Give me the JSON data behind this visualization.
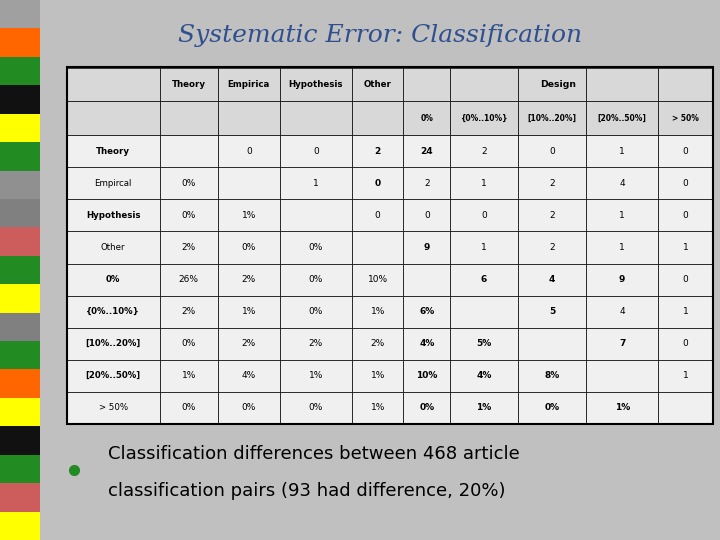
{
  "title": "Systematic Error: Classification",
  "title_color": "#2F4F8F",
  "title_fontsize": 18,
  "bullet_text_line1": "Classification differences between 468 article",
  "bullet_text_line2": "classification pairs (93 had difference, 20%)",
  "bullet_fontsize": 13,
  "col_headers_row1": [
    "",
    "Theory",
    "Empirica",
    "Hypothesis",
    "Other",
    "",
    "Design",
    "",
    "",
    ""
  ],
  "col_headers_row2": [
    "",
    "",
    "",
    "",
    "",
    "0%",
    "{0%..10%}",
    "[10%..20%]",
    "[20%..50%]",
    "> 50%"
  ],
  "row_labels": [
    "Theory",
    "Empircal",
    "Hypothesis",
    "Other",
    "0%",
    "{0%..10%}",
    "[10%..20%]",
    "[20%..50%]",
    "> 50%"
  ],
  "row_labels_bold": [
    true,
    false,
    true,
    false,
    true,
    true,
    true,
    true,
    false
  ],
  "table_data": [
    [
      "",
      "0",
      "0",
      "2",
      "24",
      "2",
      "0",
      "1",
      "0"
    ],
    [
      "0%",
      "",
      "1",
      "0",
      "2",
      "1",
      "2",
      "4",
      "0"
    ],
    [
      "0%",
      "1%",
      "",
      "0",
      "0",
      "0",
      "2",
      "1",
      "0"
    ],
    [
      "2%",
      "0%",
      "0%",
      "",
      "9",
      "1",
      "2",
      "1",
      "1"
    ],
    [
      "26%",
      "2%",
      "0%",
      "10%",
      "",
      "6",
      "4",
      "9",
      "0"
    ],
    [
      "2%",
      "1%",
      "0%",
      "1%",
      "6%",
      "",
      "5",
      "4",
      "1"
    ],
    [
      "0%",
      "2%",
      "2%",
      "2%",
      "4%",
      "5%",
      "",
      "7",
      "0"
    ],
    [
      "1%",
      "4%",
      "1%",
      "1%",
      "10%",
      "4%",
      "8%",
      "",
      "1"
    ],
    [
      "0%",
      "0%",
      "0%",
      "1%",
      "0%",
      "1%",
      "0%",
      "1%",
      ""
    ]
  ],
  "bold_data_cells": [
    [
      0,
      3
    ],
    [
      0,
      4
    ],
    [
      1,
      3
    ],
    [
      3,
      4
    ],
    [
      4,
      4
    ],
    [
      4,
      5
    ],
    [
      4,
      6
    ],
    [
      4,
      7
    ],
    [
      5,
      4
    ],
    [
      5,
      6
    ],
    [
      6,
      4
    ],
    [
      6,
      5
    ],
    [
      6,
      7
    ],
    [
      7,
      4
    ],
    [
      7,
      5
    ],
    [
      7,
      6
    ],
    [
      8,
      4
    ],
    [
      8,
      5
    ],
    [
      8,
      6
    ],
    [
      8,
      7
    ]
  ],
  "left_bar_colors": [
    "#A0A0A0",
    "#FF6600",
    "#228B22",
    "#111111",
    "#FFFF00",
    "#228B22",
    "#909090",
    "#808080",
    "#CD5C5C",
    "#228B22",
    "#FFFF00",
    "#808080",
    "#228B22",
    "#FF6600",
    "#FFFF00",
    "#111111",
    "#228B22",
    "#CD5C5C",
    "#FFFF00"
  ],
  "slide_bg": "#C0C0C0",
  "table_header_bg": "#D8D8D8",
  "table_cell_bg": "#F0F0F0",
  "table_border_color": "#000000"
}
